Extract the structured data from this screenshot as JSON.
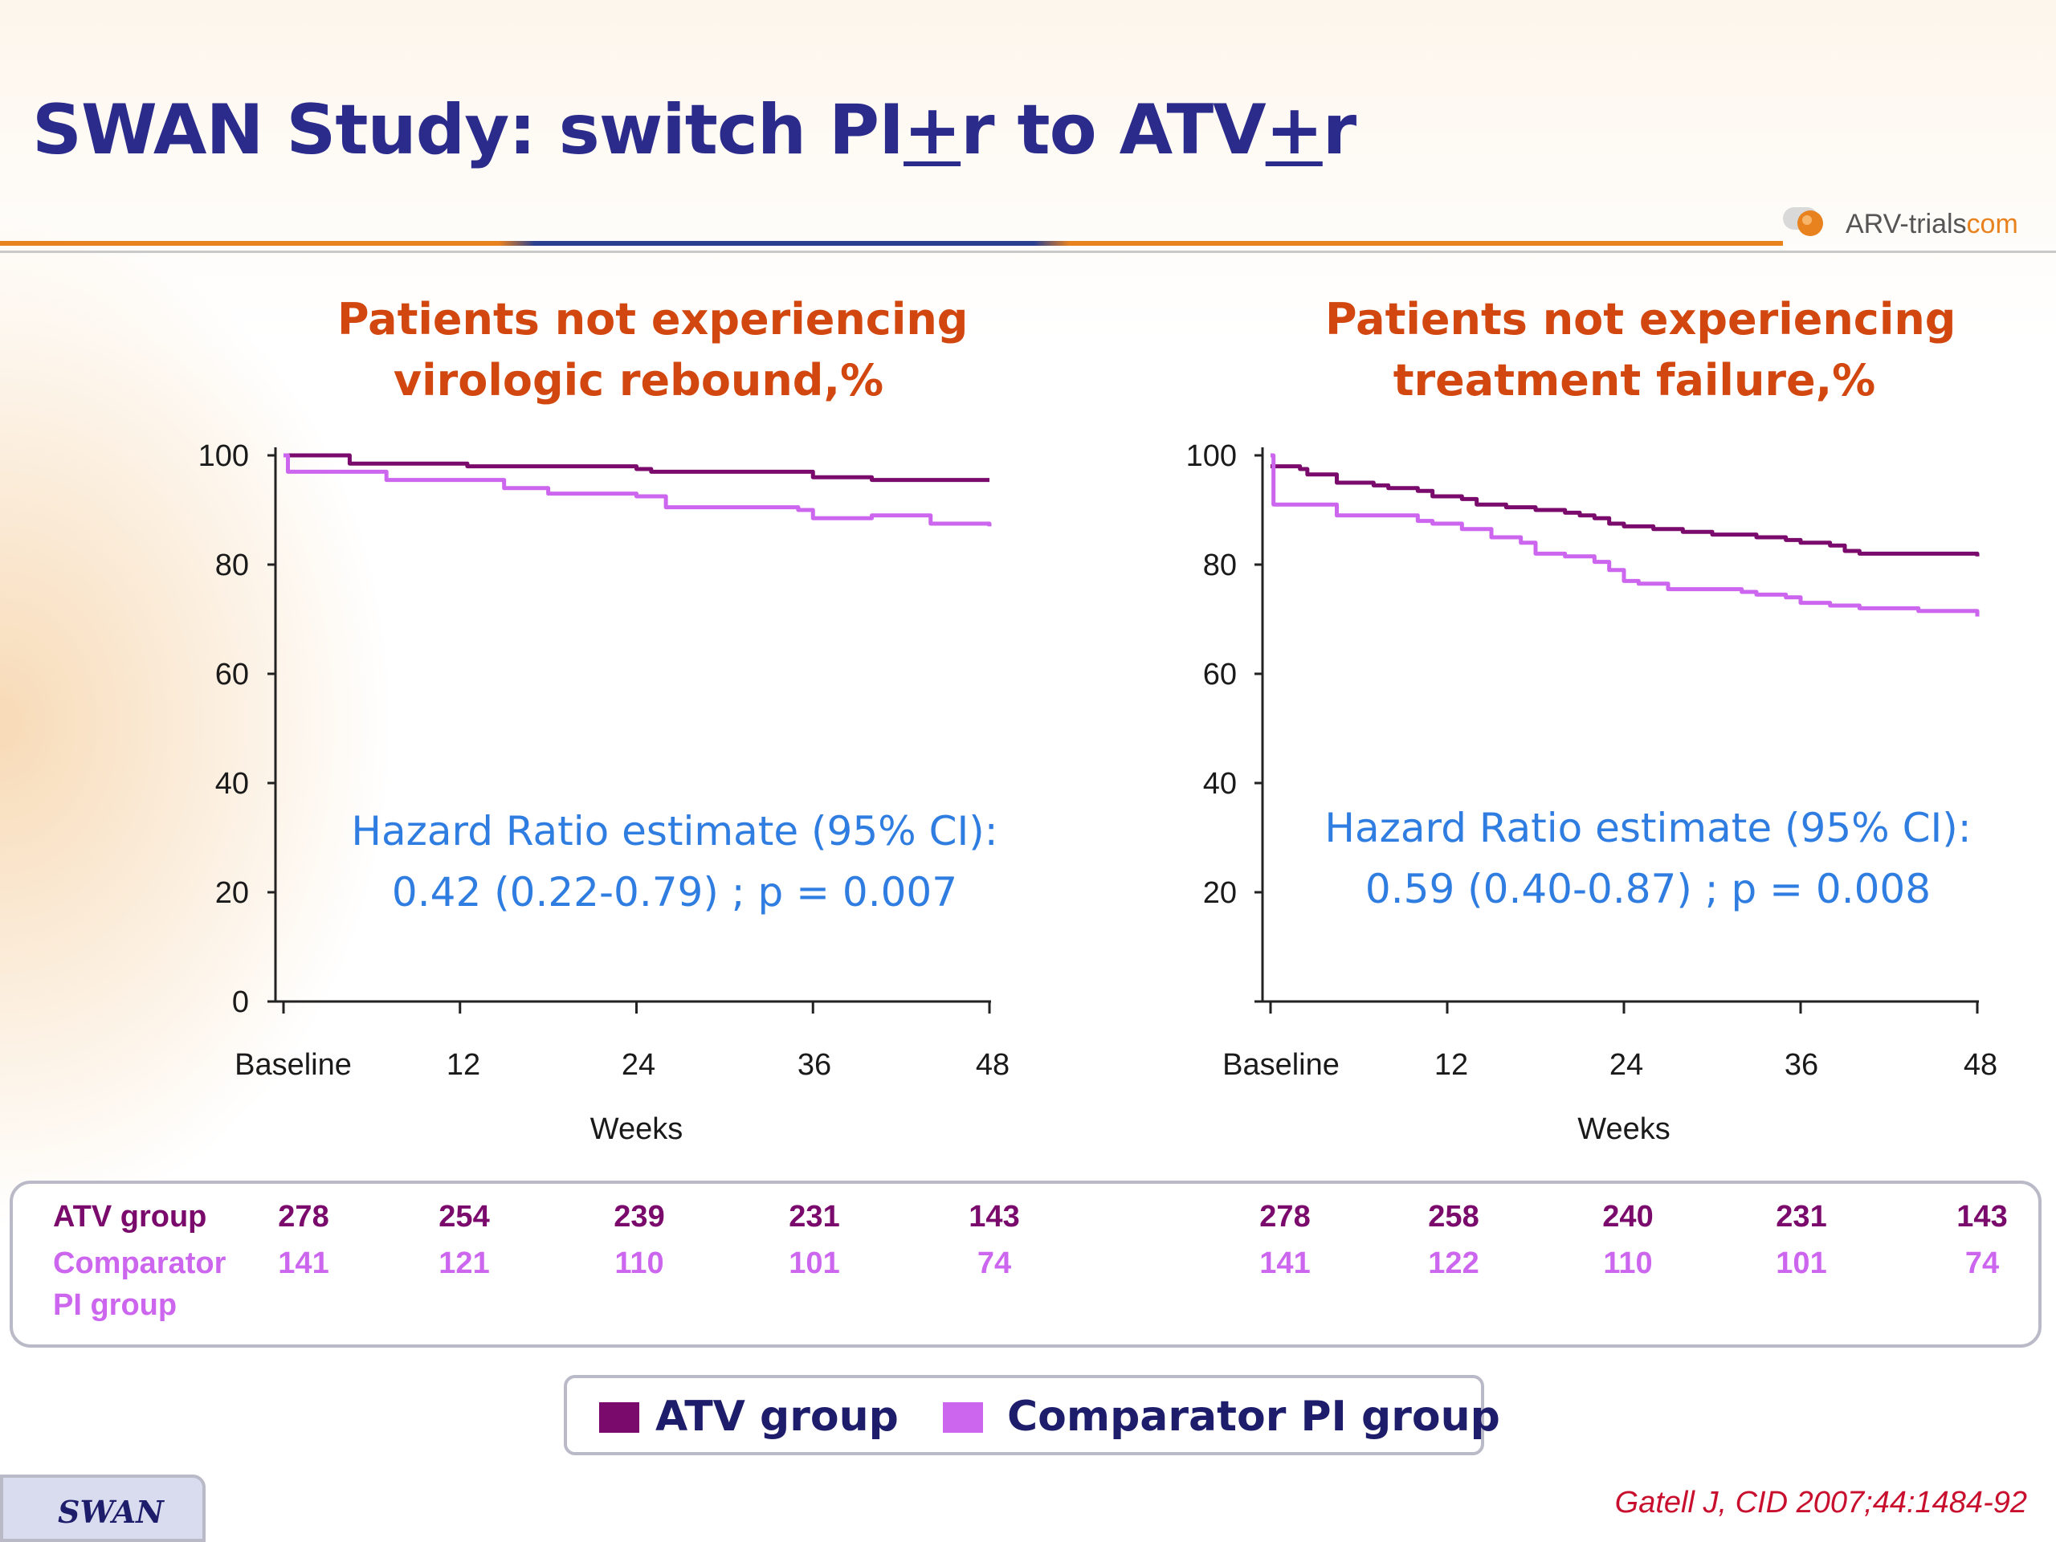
{
  "header": {
    "title_part1": "SWAN Study: switch PI",
    "title_pm1": "+",
    "title_part2": "r to ATV",
    "title_pm2": "+",
    "title_part3": "r",
    "logo_text_a": "ARV-trials",
    "logo_text_b": "com"
  },
  "colors": {
    "title": "#2b2b8c",
    "chart_title": "#d2470f",
    "atv": "#7a0a6c",
    "comparator": "#cc66ee",
    "hazard_text": "#2f7de0",
    "citation": "#c8102e"
  },
  "chart_data": [
    {
      "type": "line",
      "title_line1": "Patients not experiencing",
      "title_line2": "virologic rebound,%",
      "xlabel": "Weeks",
      "x_ticks": [
        0,
        12,
        24,
        36,
        48
      ],
      "x_tick_labels": [
        "Baseline",
        "12",
        "24",
        "36",
        "48"
      ],
      "y_ticks": [
        0,
        20,
        40,
        60,
        80,
        100
      ],
      "y_tick_labels": [
        "0",
        "20",
        "40",
        "60",
        "80",
        "100"
      ],
      "xlim": [
        0,
        48
      ],
      "ylim": [
        0,
        100
      ],
      "hazard_line1": "Hazard Ratio estimate (95% CI):",
      "hazard_line2": "0.42 (0.22-0.79) ; p = 0.007",
      "series": [
        {
          "name": "ATV group",
          "color": "#7a0a6c",
          "x": [
            0,
            4.5,
            4.5,
            12,
            12.5,
            24,
            25,
            35,
            36,
            39,
            40,
            48
          ],
          "y": [
            100,
            100,
            98.5,
            98.5,
            98,
            97.5,
            97,
            97,
            96,
            96,
            95.5,
            95.5
          ]
        },
        {
          "name": "Comparator PI group",
          "color": "#cc66ee",
          "x": [
            0,
            0.3,
            4,
            7,
            14,
            15,
            18,
            24,
            26,
            35,
            36,
            38,
            40,
            43,
            44,
            48
          ],
          "y": [
            100,
            97,
            97,
            95.5,
            95.5,
            94,
            93,
            92.5,
            90.5,
            90,
            88.5,
            88.5,
            89,
            89,
            87.5,
            87
          ]
        }
      ],
      "risk_table": {
        "atv": [
          "278",
          "254",
          "239",
          "231",
          "143"
        ],
        "comparator": [
          "141",
          "121",
          "110",
          "101",
          "74"
        ]
      }
    },
    {
      "type": "line",
      "title_line1": "Patients not experiencing",
      "title_line2": "treatment failure,%",
      "xlabel": "Weeks",
      "x_ticks": [
        0,
        12,
        24,
        36,
        48
      ],
      "x_tick_labels": [
        "Baseline",
        "12",
        "24",
        "36",
        "48"
      ],
      "y_ticks": [
        20,
        40,
        60,
        80,
        100
      ],
      "y_tick_labels": [
        "20",
        "40",
        "60",
        "80",
        "100"
      ],
      "xlim": [
        0,
        48
      ],
      "ylim": [
        0,
        100
      ],
      "hazard_line1": "Hazard Ratio estimate (95% CI):",
      "hazard_line2": "0.59 (0.40-0.87) ; p = 0.008",
      "series": [
        {
          "name": "ATV group",
          "color": "#7a0a6c",
          "x": [
            0,
            2,
            2.5,
            4,
            4.5,
            7,
            8,
            10,
            11,
            13,
            14,
            15,
            16,
            18,
            20,
            21,
            22,
            23,
            24,
            26,
            28,
            30,
            33,
            35,
            36,
            38,
            39,
            40,
            44,
            48
          ],
          "y": [
            98,
            97.5,
            96.5,
            96.5,
            95,
            94.5,
            94,
            93.5,
            92.5,
            92,
            91,
            91,
            90.5,
            90,
            89.5,
            89,
            88.5,
            87.5,
            87,
            86.5,
            86,
            85.5,
            85,
            84.5,
            84,
            83.5,
            82.5,
            82,
            82,
            81.5
          ]
        },
        {
          "name": "Comparator PI group",
          "color": "#cc66ee",
          "x": [
            0,
            0.2,
            4,
            4.5,
            10,
            11,
            13,
            15,
            17,
            18,
            20,
            22,
            23,
            24,
            25,
            27,
            30,
            32,
            33,
            35,
            36,
            38,
            40,
            44,
            48
          ],
          "y": [
            100,
            91,
            91,
            89,
            88,
            87.5,
            86.5,
            85,
            84,
            82,
            81.5,
            80.5,
            79,
            77,
            76.5,
            75.5,
            75.5,
            75,
            74.5,
            74,
            73,
            72.5,
            72,
            71.5,
            70.5
          ]
        }
      ],
      "risk_table": {
        "atv": [
          "278",
          "258",
          "240",
          "231",
          "143"
        ],
        "comparator": [
          "141",
          "122",
          "110",
          "101",
          "74"
        ]
      }
    }
  ],
  "risk_labels": {
    "atv": "ATV group",
    "comparator_line1": "Comparator",
    "comparator_line2": "PI group"
  },
  "legend": {
    "atv_label": "ATV group",
    "comparator_label": "Comparator PI group"
  },
  "footer": {
    "study_tag": "SWAN",
    "citation": "Gatell J, CID 2007;44:1484-92"
  }
}
